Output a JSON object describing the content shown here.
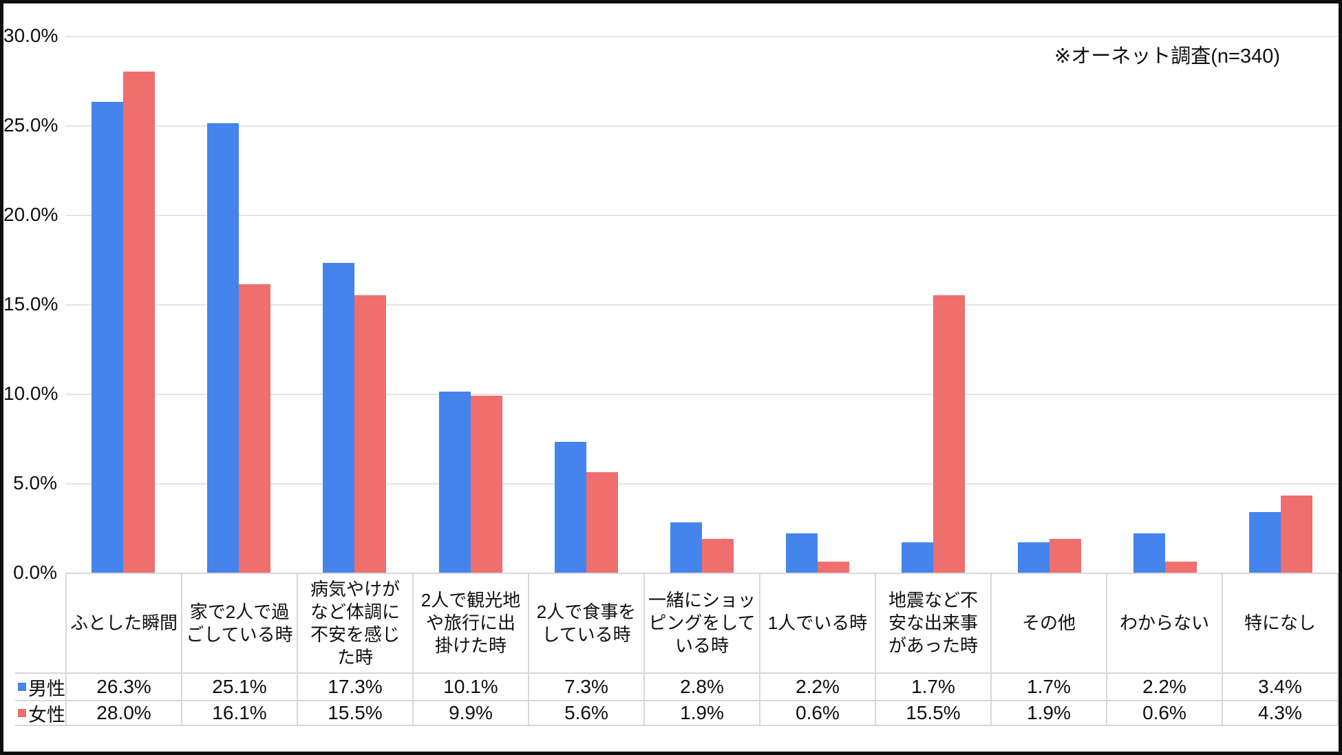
{
  "chart_data": {
    "type": "bar",
    "title": "",
    "annotation": "※オーネット調査(n=340)",
    "categories": [
      "ふとした瞬間",
      "家で2人で過\nごしている時",
      "病気やけが\nなど体調に\n不安を感じ\nた時",
      "2人で観光地\nや旅行に出\n掛けた時",
      "2人で食事を\nしている時",
      "一緒にショッ\nピングをして\nいる時",
      "1人でいる時",
      "地震など不\n安な出来事\nがあった時",
      "その他",
      "わからない",
      "特になし"
    ],
    "series": [
      {
        "name": "男性",
        "color": "#4484EC",
        "values": [
          26.3,
          25.1,
          17.3,
          10.1,
          7.3,
          2.8,
          2.2,
          1.7,
          1.7,
          2.2,
          3.4
        ],
        "value_labels": [
          "26.3%",
          "25.1%",
          "17.3%",
          "10.1%",
          "7.3%",
          "2.8%",
          "2.2%",
          "1.7%",
          "1.7%",
          "2.2%",
          "3.4%"
        ]
      },
      {
        "name": "女性",
        "color": "#EF6E6E",
        "values": [
          28.0,
          16.1,
          15.5,
          9.9,
          5.6,
          1.9,
          0.6,
          15.5,
          1.9,
          0.6,
          4.3
        ],
        "value_labels": [
          "28.0%",
          "16.1%",
          "15.5%",
          "9.9%",
          "5.6%",
          "1.9%",
          "0.6%",
          "15.5%",
          "1.9%",
          "0.6%",
          "4.3%"
        ]
      }
    ],
    "y_axis": {
      "min": 0,
      "max": 30,
      "tick_step": 5,
      "tick_labels": [
        "30.0%",
        "25.0%",
        "20.0%",
        "15.0%",
        "10.0%",
        "5.0%",
        "0.0%"
      ],
      "grid": true
    },
    "legend_position": "table-left-of-rows",
    "grid_color": "#e4e4e4",
    "border_color": "#d7d7d7"
  }
}
